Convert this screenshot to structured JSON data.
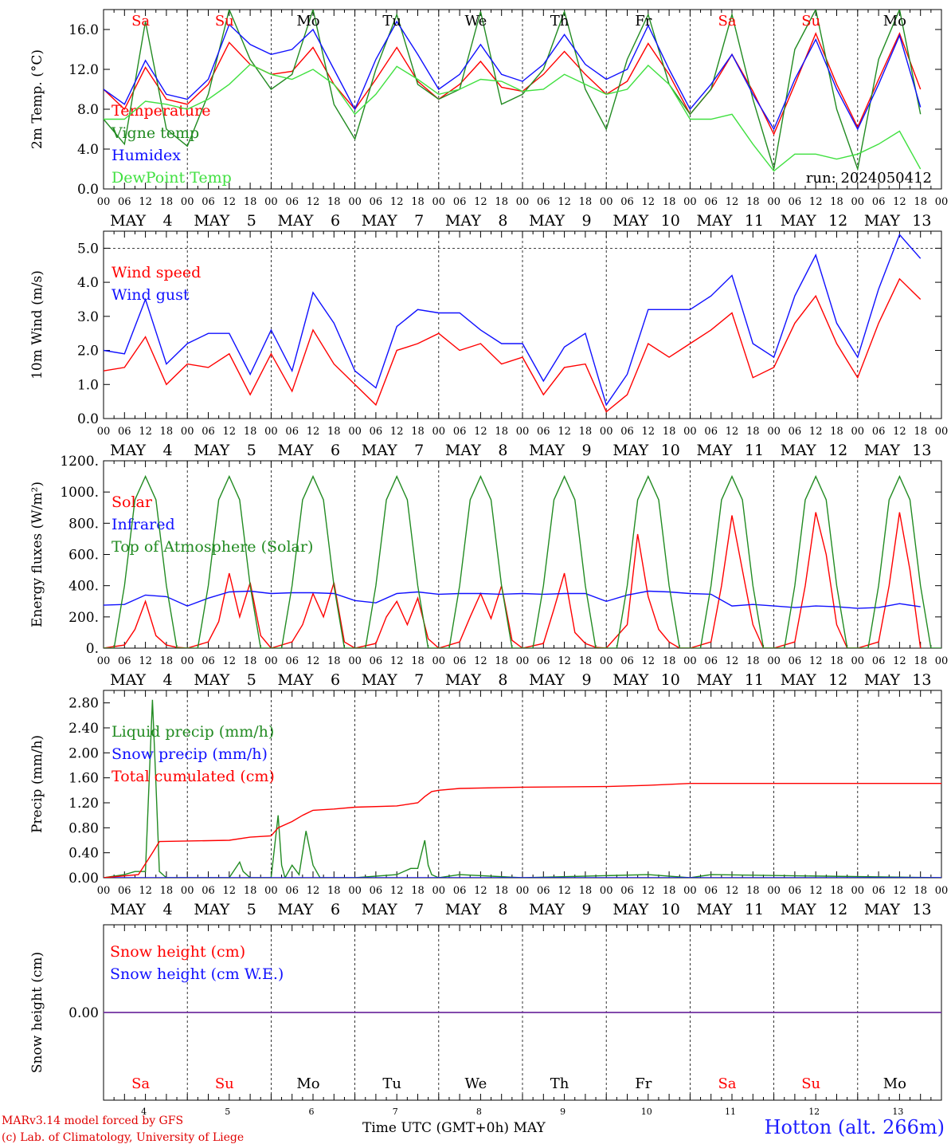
{
  "run_label": "run: 2024050412",
  "days": [
    {
      "dow": "Sa",
      "month": "MAY",
      "day": "4",
      "weekend": true
    },
    {
      "dow": "Su",
      "month": "MAY",
      "day": "5",
      "weekend": true
    },
    {
      "dow": "Mo",
      "month": "MAY",
      "day": "6",
      "weekend": false
    },
    {
      "dow": "Tu",
      "month": "MAY",
      "day": "7",
      "weekend": false
    },
    {
      "dow": "We",
      "month": "MAY",
      "day": "8",
      "weekend": false
    },
    {
      "dow": "Th",
      "month": "MAY",
      "day": "9",
      "weekend": false
    },
    {
      "dow": "Fr",
      "month": "MAY",
      "day": "10",
      "weekend": false
    },
    {
      "dow": "Sa",
      "month": "MAY",
      "day": "11",
      "weekend": true
    },
    {
      "dow": "Su",
      "month": "MAY",
      "day": "12",
      "weekend": true
    },
    {
      "dow": "Mo",
      "month": "MAY",
      "day": "13",
      "weekend": false
    }
  ],
  "hour_ticks": [
    "00",
    "06",
    "12",
    "18"
  ],
  "end_tick": "00",
  "colors": {
    "red": "#ff0000",
    "green": "#228b22",
    "blue": "#1010ff",
    "lightgreen": "#40e040",
    "purple": "#7030a0"
  },
  "chart_data": [
    {
      "type": "line",
      "ylabel": "2m Temp. (°C)",
      "ylim": [
        0,
        18
      ],
      "yticks": [
        "0.0",
        "4.0",
        "8.0",
        "12.0",
        "16.0"
      ],
      "series": [
        {
          "name": "Temperature",
          "color": "red",
          "x": [
            0,
            6,
            12,
            18,
            24,
            30,
            36,
            42,
            48,
            54,
            60,
            66,
            72,
            78,
            84,
            90,
            96,
            102,
            108,
            114,
            120,
            126,
            132,
            138,
            144,
            150,
            156,
            162,
            168,
            174,
            180,
            186,
            192,
            198,
            204,
            210,
            216,
            222,
            228,
            234
          ],
          "y": [
            10,
            8,
            12.2,
            9,
            8.5,
            10.5,
            14.7,
            12.5,
            11.5,
            11.8,
            14.2,
            10.5,
            8,
            11,
            14.2,
            10.8,
            9,
            10.5,
            12.8,
            10.2,
            9.8,
            11.5,
            13.8,
            11.5,
            9.5,
            10.8,
            14.6,
            11.5,
            7.5,
            10,
            13.5,
            9.8,
            5.5,
            10.5,
            15.6,
            10.5,
            6.2,
            11,
            15.6,
            10
          ]
        },
        {
          "name": "Vigne temp",
          "color": "green",
          "x": [
            0,
            6,
            12,
            18,
            24,
            30,
            36,
            42,
            48,
            54,
            60,
            66,
            72,
            78,
            84,
            90,
            96,
            102,
            108,
            114,
            120,
            126,
            132,
            138,
            144,
            150,
            156,
            162,
            168,
            174,
            180,
            186,
            192,
            198,
            204,
            210,
            216,
            222,
            228,
            234
          ],
          "y": [
            7,
            4.5,
            16.8,
            6,
            4.3,
            9.5,
            18,
            13,
            10,
            11.5,
            18,
            8.5,
            5,
            12,
            17.5,
            10.5,
            9,
            10,
            17.8,
            8.5,
            9.5,
            12,
            17.8,
            10,
            6,
            13,
            17.5,
            10.5,
            7.5,
            10,
            17.5,
            9,
            2,
            14,
            18,
            8,
            2,
            13,
            18,
            7.5
          ]
        },
        {
          "name": "Humidex",
          "color": "blue",
          "x": [
            0,
            6,
            12,
            18,
            24,
            30,
            36,
            42,
            48,
            54,
            60,
            66,
            72,
            78,
            84,
            90,
            96,
            102,
            108,
            114,
            120,
            126,
            132,
            138,
            144,
            150,
            156,
            162,
            168,
            174,
            180,
            186,
            192,
            198,
            204,
            210,
            216,
            222,
            228,
            234
          ],
          "y": [
            10,
            8.5,
            12.9,
            9.5,
            9,
            11,
            16.5,
            14.5,
            13.5,
            14,
            16,
            12,
            8,
            13,
            16.8,
            13.5,
            10,
            11.5,
            14.5,
            11.5,
            10.8,
            12.5,
            15.5,
            12.5,
            11,
            12,
            16.4,
            12,
            8,
            10.5,
            13.5,
            9.5,
            6,
            11,
            15,
            10,
            6,
            10.5,
            15.4,
            8.2
          ]
        },
        {
          "name": "DewPoint Temp",
          "color": "lightgreen",
          "x": [
            0,
            6,
            12,
            18,
            24,
            30,
            36,
            42,
            48,
            54,
            60,
            66,
            72,
            78,
            84,
            90,
            96,
            102,
            108,
            114,
            120,
            126,
            132,
            138,
            144,
            150,
            156,
            162,
            168,
            174,
            180,
            186,
            192,
            198,
            204,
            210,
            216,
            222,
            228,
            234
          ],
          "y": [
            7,
            7,
            8.8,
            8.5,
            8,
            9,
            10.5,
            12.5,
            11.5,
            11,
            12,
            10.5,
            7.5,
            9.5,
            12.3,
            11,
            9.5,
            10,
            11,
            10.8,
            9.8,
            10,
            11.5,
            10.5,
            9.5,
            10,
            12.4,
            10.5,
            7,
            7,
            7.5,
            4.5,
            1.8,
            3.5,
            3.5,
            3,
            3.5,
            4.5,
            5.8,
            2
          ]
        }
      ]
    },
    {
      "type": "line",
      "ylabel": "10m Wind (m/s)",
      "ylim": [
        0,
        5.5
      ],
      "yticks": [
        "0.0",
        "1.0",
        "2.0",
        "3.0",
        "4.0",
        "5.0"
      ],
      "series": [
        {
          "name": "Wind speed",
          "color": "red",
          "x": [
            0,
            6,
            12,
            18,
            24,
            30,
            36,
            42,
            48,
            54,
            60,
            66,
            72,
            78,
            84,
            90,
            96,
            102,
            108,
            114,
            120,
            126,
            132,
            138,
            144,
            150,
            156,
            162,
            168,
            174,
            180,
            186,
            192,
            198,
            204,
            210,
            216,
            222,
            228,
            234
          ],
          "y": [
            1.4,
            1.5,
            2.4,
            1,
            1.6,
            1.5,
            1.9,
            0.7,
            1.9,
            0.8,
            2.6,
            1.6,
            1,
            0.4,
            2,
            2.2,
            2.5,
            2,
            2.2,
            1.6,
            1.8,
            0.7,
            1.5,
            1.6,
            0.2,
            0.7,
            2.2,
            1.8,
            2.2,
            2.6,
            3.1,
            1.2,
            1.5,
            2.8,
            3.6,
            2.2,
            1.2,
            2.8,
            4.1,
            3.5
          ]
        },
        {
          "name": "Wind gust",
          "color": "blue",
          "x": [
            0,
            6,
            12,
            18,
            24,
            30,
            36,
            42,
            48,
            54,
            60,
            66,
            72,
            78,
            84,
            90,
            96,
            102,
            108,
            114,
            120,
            126,
            132,
            138,
            144,
            150,
            156,
            162,
            168,
            174,
            180,
            186,
            192,
            198,
            204,
            210,
            216,
            222,
            228,
            234
          ],
          "y": [
            2,
            1.9,
            3.5,
            1.6,
            2.2,
            2.5,
            2.5,
            1.3,
            2.6,
            1.4,
            3.7,
            2.8,
            1.4,
            0.9,
            2.7,
            3.2,
            3.1,
            3.1,
            2.6,
            2.2,
            2.2,
            1.1,
            2.1,
            2.5,
            0.4,
            1.3,
            3.2,
            3.2,
            3.2,
            3.6,
            4.2,
            2.2,
            1.8,
            3.6,
            4.8,
            2.8,
            1.8,
            3.8,
            5.4,
            4.7
          ]
        }
      ]
    },
    {
      "type": "line",
      "ylabel": "Energy fluxes (W/m²)",
      "ylim": [
        0,
        1200
      ],
      "yticks": [
        "0.",
        "200.",
        "400.",
        "600.",
        "800.",
        "1000.",
        "1200."
      ],
      "series": [
        {
          "name": "Solar",
          "color": "red",
          "x": [
            0,
            6,
            9,
            12,
            15,
            18,
            21,
            24,
            30,
            33,
            36,
            39,
            42,
            45,
            48,
            54,
            57,
            60,
            63,
            66,
            69,
            72,
            78,
            81,
            84,
            87,
            90,
            93,
            96,
            102,
            105,
            108,
            111,
            114,
            117,
            120,
            126,
            129,
            132,
            135,
            138,
            141,
            144,
            150,
            153,
            156,
            159,
            162,
            165,
            168,
            174,
            177,
            180,
            183,
            186,
            189,
            192,
            198,
            201,
            204,
            207,
            210,
            213,
            216,
            222,
            225,
            228,
            231,
            234
          ],
          "y": [
            0,
            20,
            120,
            300,
            80,
            20,
            5,
            0,
            40,
            170,
            480,
            200,
            420,
            80,
            0,
            40,
            150,
            350,
            200,
            420,
            40,
            0,
            30,
            200,
            300,
            150,
            320,
            60,
            0,
            40,
            200,
            350,
            190,
            400,
            50,
            0,
            30,
            250,
            480,
            100,
            30,
            5,
            0,
            150,
            730,
            330,
            120,
            40,
            0,
            0,
            40,
            400,
            850,
            500,
            150,
            0,
            0,
            40,
            400,
            870,
            600,
            150,
            0,
            0,
            40,
            400,
            870,
            500,
            0
          ]
        },
        {
          "name": "Infrared",
          "color": "blue",
          "x": [
            0,
            6,
            12,
            18,
            24,
            30,
            36,
            42,
            48,
            54,
            60,
            66,
            72,
            78,
            84,
            90,
            96,
            102,
            108,
            114,
            120,
            126,
            132,
            138,
            144,
            150,
            156,
            162,
            168,
            174,
            180,
            186,
            192,
            198,
            204,
            210,
            216,
            222,
            228,
            234
          ],
          "y": [
            275,
            280,
            340,
            330,
            270,
            320,
            360,
            365,
            350,
            355,
            355,
            350,
            305,
            290,
            350,
            360,
            345,
            350,
            350,
            345,
            350,
            345,
            350,
            350,
            300,
            340,
            365,
            360,
            350,
            345,
            270,
            280,
            270,
            260,
            270,
            265,
            255,
            260,
            285,
            265
          ]
        },
        {
          "name": "Top of Atmosphere (Solar)",
          "color": "green",
          "x": [
            0,
            3,
            6,
            9,
            12,
            15,
            18,
            21,
            24
          ],
          "y": [
            0,
            0,
            400,
            950,
            1100,
            950,
            400,
            0,
            0
          ],
          "repeat_daily": true
        }
      ]
    },
    {
      "type": "line",
      "ylabel": "Precip (mm/h)",
      "ylim": [
        0,
        3.0
      ],
      "yticks": [
        "0.00",
        "0.40",
        "0.80",
        "1.20",
        "1.60",
        "2.00",
        "2.40",
        "2.80"
      ],
      "series": [
        {
          "name": "Liquid precip (mm/h)",
          "color": "green",
          "x": [
            0,
            6,
            9,
            12,
            14,
            15,
            16,
            18,
            24,
            36,
            39,
            40,
            42,
            48,
            50,
            51,
            52,
            54,
            56,
            58,
            60,
            62,
            66,
            72,
            84,
            88,
            90,
            92,
            93,
            94,
            96,
            102,
            120,
            156,
            168,
            174,
            240
          ],
          "y": [
            0,
            0.05,
            0.1,
            0.1,
            2.85,
            1.5,
            0.1,
            0,
            0,
            0,
            0.25,
            0.1,
            0,
            0,
            1.0,
            0.2,
            0,
            0.2,
            0.05,
            0.75,
            0.2,
            0,
            0,
            0,
            0.05,
            0.15,
            0.15,
            0.6,
            0.2,
            0.05,
            0,
            0.05,
            0,
            0.05,
            0,
            0.05,
            0
          ]
        },
        {
          "name": "Snow precip (mm/h)",
          "color": "blue",
          "x": [
            0,
            240
          ],
          "y": [
            0,
            0
          ]
        },
        {
          "name": "Total cumulated (cm)",
          "color": "red",
          "x": [
            0,
            10,
            14,
            16,
            36,
            42,
            48,
            50,
            54,
            57,
            60,
            66,
            72,
            84,
            90,
            92,
            94,
            96,
            102,
            120,
            144,
            156,
            168,
            240
          ],
          "y": [
            0,
            0.05,
            0.4,
            0.58,
            0.6,
            0.65,
            0.67,
            0.8,
            0.9,
            1.0,
            1.08,
            1.1,
            1.13,
            1.15,
            1.2,
            1.3,
            1.38,
            1.4,
            1.43,
            1.45,
            1.46,
            1.48,
            1.51,
            1.51
          ]
        }
      ]
    },
    {
      "type": "line",
      "ylabel": "Snow height (cm)",
      "ylim": [
        -1,
        1
      ],
      "yticks": [
        "0.00"
      ],
      "series": [
        {
          "name": "Snow height (cm)",
          "color": "red",
          "x": [
            0,
            240
          ],
          "y": [
            0,
            0
          ]
        },
        {
          "name": "Snow height (cm W.E.)",
          "color": "blue",
          "x": [
            0,
            240
          ],
          "y": [
            0,
            0
          ]
        }
      ]
    }
  ],
  "footer": {
    "model": "MARv3.14 model forced by GFS",
    "copyright": "(c) Lab. of Climatology, University of Liege",
    "xlabel": "Time UTC (GMT+0h)",
    "month": "MAY",
    "station": "Hotton (alt. 266m)"
  }
}
